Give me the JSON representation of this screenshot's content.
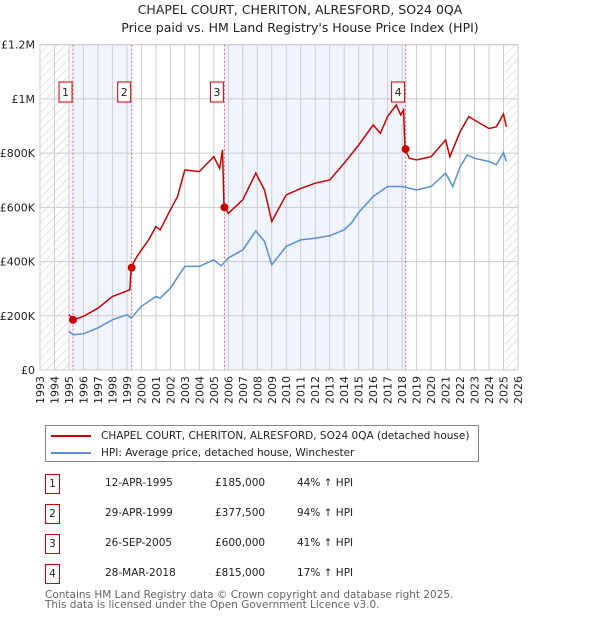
{
  "chart_data": {
    "type": "line",
    "title": "CHAPEL COURT, CHERITON, ALRESFORD, SO24 0QA",
    "subtitle": "Price paid vs. HM Land Registry's House Price Index (HPI)",
    "xlim": [
      1993,
      2026
    ],
    "ylim": [
      0,
      1200000
    ],
    "x_ticks": [
      "1993",
      "1994",
      "1995",
      "1996",
      "1997",
      "1998",
      "1999",
      "2000",
      "2001",
      "2002",
      "2003",
      "2004",
      "2005",
      "2006",
      "2007",
      "2008",
      "2009",
      "2010",
      "2011",
      "2012",
      "2013",
      "2014",
      "2015",
      "2016",
      "2017",
      "2018",
      "2019",
      "2020",
      "2021",
      "2022",
      "2023",
      "2024",
      "2025",
      "2026"
    ],
    "y_ticks": [
      {
        "value": 0,
        "label": "£0"
      },
      {
        "value": 200000,
        "label": "£200K"
      },
      {
        "value": 400000,
        "label": "£400K"
      },
      {
        "value": 600000,
        "label": "£600K"
      },
      {
        "value": 800000,
        "label": "£800K"
      },
      {
        "value": 1000000,
        "label": "£1M"
      },
      {
        "value": 1200000,
        "label": "£1.2M"
      }
    ],
    "grid": true,
    "hatched_ranges": [
      [
        1993,
        1995.0
      ],
      [
        2025.1,
        2026
      ]
    ],
    "shaded_ranges": [
      [
        1995.0,
        1999.33
      ],
      [
        2005.73,
        2018.24
      ]
    ],
    "series": [
      {
        "name": "CHAPEL COURT, CHERITON, ALRESFORD, SO24 0QA (detached house)",
        "color": "#cc0000",
        "x": [
          1995.0,
          1995.3,
          1996,
          1997,
          1998,
          1999.2,
          1999.3,
          1999.7,
          2000.5,
          2001,
          2001.3,
          2002,
          2002.5,
          2003,
          2004,
          2005,
          2005.4,
          2005.6,
          2005.7,
          2006,
          2007,
          2007.9,
          2008.5,
          2009.0,
          2010,
          2011,
          2012,
          2013,
          2014,
          2015,
          2016,
          2016.5,
          2017,
          2017.6,
          2017.9,
          2018.1,
          2018.2,
          2018.5,
          2019,
          2020,
          2021,
          2021.3,
          2022,
          2022.6,
          2023,
          2024,
          2024.5,
          2025.0,
          2025.2
        ],
        "y": [
          204000,
          185000,
          198000,
          228000,
          271000,
          296000,
          380000,
          419000,
          480000,
          529000,
          517000,
          591000,
          640000,
          738000,
          732000,
          787000,
          744000,
          812000,
          603000,
          578000,
          628000,
          726000,
          664000,
          548000,
          646000,
          670000,
          689000,
          701000,
          763000,
          830000,
          904000,
          873000,
          935000,
          978000,
          941000,
          959000,
          815000,
          781000,
          775000,
          787000,
          849000,
          787000,
          879000,
          935000,
          922000,
          891000,
          897000,
          944000,
          897000
        ]
      },
      {
        "name": "HPI: Average price, detached house, Winchester",
        "color": "#5b8fd4",
        "x": [
          1995.0,
          1995.3,
          1996,
          1997,
          1998,
          1999,
          1999.3,
          2000,
          2001,
          2001.3,
          2002,
          2003,
          2004,
          2005,
          2005.5,
          2006,
          2007,
          2007.9,
          2008.5,
          2009.0,
          2010,
          2011,
          2012,
          2013,
          2014,
          2014.5,
          2015,
          2016,
          2017,
          2018,
          2019,
          2020,
          2021,
          2021.5,
          2022,
          2022.5,
          2023,
          2024,
          2024.5,
          2025.0,
          2025.2
        ],
        "y": [
          142000,
          130000,
          134000,
          155000,
          185000,
          204000,
          192000,
          235000,
          271000,
          265000,
          302000,
          382000,
          382000,
          406000,
          384000,
          413000,
          443000,
          513000,
          474000,
          388000,
          456000,
          480000,
          486000,
          495000,
          517000,
          542000,
          581000,
          640000,
          677000,
          677000,
          664000,
          677000,
          726000,
          677000,
          750000,
          793000,
          781000,
          769000,
          757000,
          802000,
          769000
        ]
      }
    ],
    "transactions": [
      {
        "label": "1",
        "x": 1995.28,
        "price": 185000,
        "date": "12-APR-1995",
        "price_text": "£185,000",
        "hpi_text": "44% ↑ HPI"
      },
      {
        "label": "2",
        "x": 1999.33,
        "price": 377500,
        "date": "29-APR-1999",
        "price_text": "£377,500",
        "hpi_text": "94% ↑ HPI"
      },
      {
        "label": "3",
        "x": 2005.73,
        "price": 600000,
        "date": "26-SEP-2005",
        "price_text": "£600,000",
        "hpi_text": "41% ↑ HPI"
      },
      {
        "label": "4",
        "x": 2018.24,
        "price": 815000,
        "date": "28-MAR-2018",
        "price_text": "£815,000",
        "hpi_text": "17% ↑ HPI"
      }
    ]
  },
  "footer": {
    "line1": "Contains HM Land Registry data © Crown copyright and database right 2025.",
    "line2": "This data is licensed under the Open Government Licence v3.0."
  }
}
